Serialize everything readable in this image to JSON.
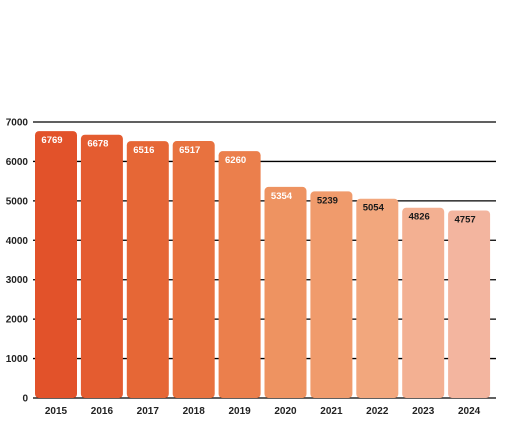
{
  "chart_data": {
    "type": "bar",
    "title": "",
    "xlabel": "",
    "ylabel": "",
    "categories": [
      "2015",
      "2016",
      "2017",
      "2018",
      "2019",
      "2020",
      "2021",
      "2022",
      "2023",
      "2024"
    ],
    "values": [
      6769,
      6678,
      6516,
      6517,
      6260,
      5354,
      5239,
      5054,
      4826,
      4757
    ],
    "data_labels": [
      "6769",
      "6678",
      "6516",
      "6517",
      "6260",
      "5354",
      "5239",
      "5054",
      "4826",
      "4757"
    ],
    "ylim": [
      0,
      7000
    ],
    "yticks": [
      0,
      1000,
      2000,
      3000,
      4000,
      5000,
      6000,
      7000
    ],
    "ytick_labels": [
      "0",
      "1000",
      "2000",
      "3000",
      "4000",
      "5000",
      "6000",
      "7000"
    ],
    "grid": true,
    "legend": "none",
    "bar_colors": [
      "#e2522a",
      "#e45c30",
      "#e66736",
      "#e8723f",
      "#eb7f4c",
      "#ee9361",
      "#f09b6c",
      "#f2a77d",
      "#f3b092",
      "#f3b59f"
    ],
    "label_colors": [
      "#ffffff",
      "#ffffff",
      "#ffffff",
      "#ffffff",
      "#ffffff",
      "#ffffff",
      "#1a1a1a",
      "#1a1a1a",
      "#1a1a1a",
      "#1a1a1a"
    ],
    "grid_color": "#000000"
  }
}
